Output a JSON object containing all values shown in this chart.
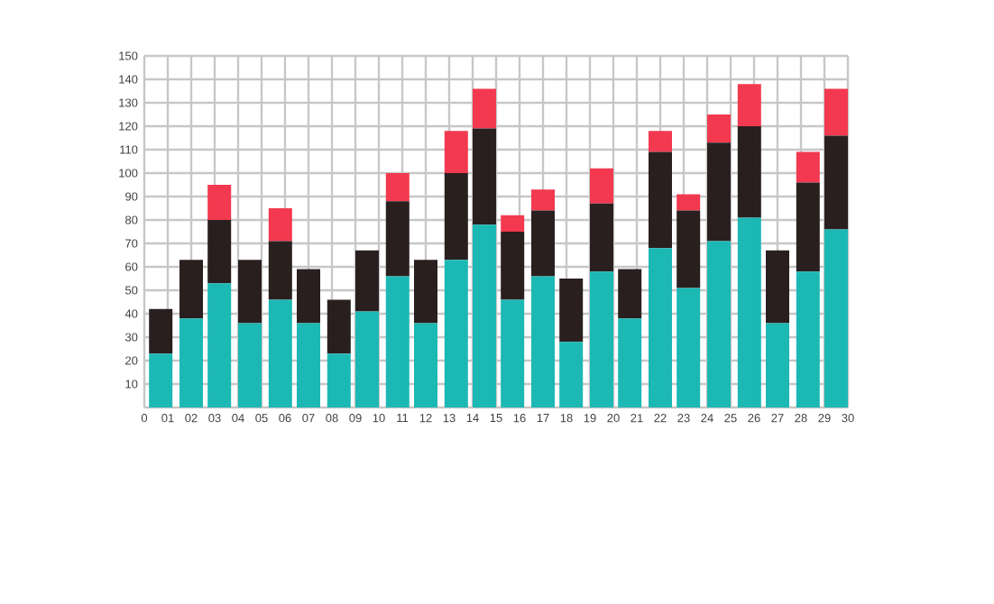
{
  "chart_data": {
    "type": "bar",
    "stacked": true,
    "grid": true,
    "x": [
      0.7,
      2.0,
      3.2,
      4.5,
      5.8,
      7.0,
      8.3,
      9.5,
      10.8,
      12.0,
      13.3,
      14.5,
      15.7,
      17.0,
      18.2,
      19.5,
      20.7,
      22.0,
      23.2,
      24.5,
      25.8,
      27.0,
      28.3,
      29.5
    ],
    "series": [
      {
        "color": "#1cb8b4",
        "values": [
          23,
          38,
          53,
          36,
          46,
          36,
          23,
          41,
          56,
          36,
          63,
          78,
          46,
          56,
          28,
          58,
          38,
          68,
          51,
          71,
          81,
          36,
          58,
          76
        ]
      },
      {
        "color": "#2a1f1f",
        "values": [
          19,
          25,
          27,
          27,
          25,
          23,
          23,
          26,
          32,
          27,
          37,
          41,
          29,
          28,
          27,
          29,
          21,
          41,
          33,
          42,
          39,
          31,
          38,
          40
        ]
      },
      {
        "color": "#f2394f",
        "values": [
          null,
          null,
          15,
          null,
          14,
          null,
          null,
          null,
          12,
          null,
          18,
          17,
          7,
          9,
          null,
          15,
          null,
          9,
          7,
          12,
          18,
          null,
          13,
          20
        ]
      }
    ],
    "xlim": [
      0,
      30
    ],
    "xticks": [
      0,
      {
        "value": 1,
        "label": "01"
      },
      {
        "value": 2,
        "label": "02"
      },
      {
        "value": 3,
        "label": "03"
      },
      {
        "value": 4,
        "label": "04"
      },
      {
        "value": 5,
        "label": "05"
      },
      {
        "value": 6,
        "label": "06"
      },
      {
        "value": 7,
        "label": "07"
      },
      {
        "value": 8,
        "label": "08"
      },
      {
        "value": 9,
        "label": "09"
      },
      10,
      11,
      12,
      13,
      14,
      15,
      16,
      17,
      18,
      19,
      20,
      21,
      22,
      23,
      24,
      25,
      26,
      27,
      28,
      29,
      30
    ],
    "ylim": [
      0,
      150
    ],
    "yticks": [
      {
        "value": 0,
        "label": null
      },
      10,
      20,
      30,
      40,
      50,
      60,
      70,
      80,
      90,
      100,
      110,
      120,
      130,
      140,
      150
    ]
  }
}
